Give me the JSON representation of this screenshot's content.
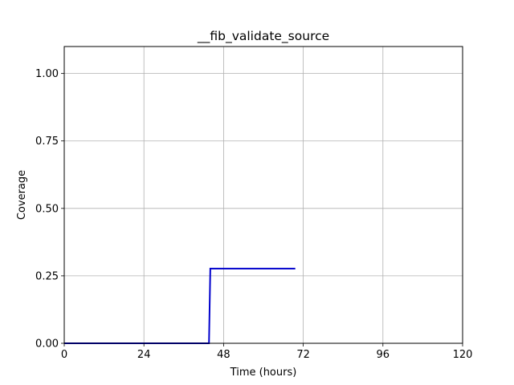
{
  "chart_data": {
    "type": "line",
    "title": "__fib_validate_source",
    "xlabel": "Time (hours)",
    "ylabel": "Coverage",
    "xlim": [
      0,
      120
    ],
    "ylim": [
      0,
      1.1
    ],
    "xticks": [
      0,
      24,
      48,
      72,
      96,
      120
    ],
    "xtick_labels": [
      "0",
      "24",
      "48",
      "72",
      "96",
      "120"
    ],
    "yticks": [
      0,
      0.25,
      0.5,
      0.75,
      1.0
    ],
    "ytick_labels": [
      "0.00",
      "0.25",
      "0.50",
      "0.75",
      "1.00"
    ],
    "grid": true,
    "series": [
      {
        "color": "#0000cc",
        "x": [
          0,
          43.6,
          44.0,
          69.6
        ],
        "y": [
          0,
          0,
          0.277,
          0.277
        ]
      }
    ]
  }
}
